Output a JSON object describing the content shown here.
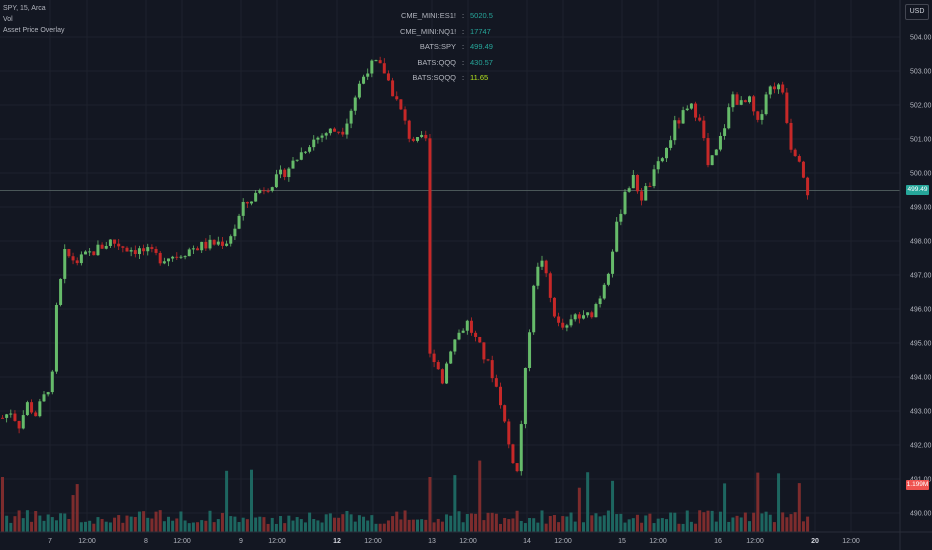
{
  "header": {
    "symbol_line": "SPY, 15, Arca",
    "indicator_vol": "Vol",
    "indicator_overlay": "Asset Price Overlay"
  },
  "overlay_table": [
    {
      "symbol": "CME_MINI:ES1!",
      "colon": ":",
      "value": "5020.5"
    },
    {
      "symbol": "CME_MINI:NQ1!",
      "colon": ":",
      "value": "17747"
    },
    {
      "symbol": "BATS:SPY",
      "colon": ":",
      "value": "499.49"
    },
    {
      "symbol": "BATS:QQQ",
      "colon": ":",
      "value": "430.57"
    },
    {
      "symbol": "BATS:SQQQ",
      "colon": ":",
      "value": "11.65"
    }
  ],
  "currency_button": "USD",
  "last_price_label": "499.49",
  "volume_label": "1.199M",
  "colors": {
    "background": "#131722",
    "up": "#26a69a",
    "down": "#ef5350",
    "up_candle": "#66bb6a",
    "down_candle": "#c62828",
    "grid": "#1e222d",
    "axis_text": "#b2b5be",
    "price_line": "#5d6d6a"
  },
  "chart_data": {
    "type": "candlestick",
    "title": "SPY, 15, Arca",
    "y_axis": {
      "ticks": [
        490,
        491,
        492,
        493,
        494,
        495,
        496,
        497,
        498,
        499,
        500,
        501,
        502,
        503,
        504
      ],
      "tick_labels": [
        "490.00",
        "491.00",
        "492.00",
        "493.00",
        "494.00",
        "495.00",
        "496.00",
        "497.00",
        "498.00",
        "499.00",
        "500.00",
        "501.00",
        "502.00",
        "503.00",
        "504.00"
      ],
      "range": [
        489.5,
        504.4
      ]
    },
    "x_axis": {
      "tick_labels": [
        "7",
        "12:00",
        "8",
        "12:00",
        "9",
        "12:00",
        "12",
        "12:00",
        "13",
        "12:00",
        "14",
        "12:00",
        "15",
        "12:00",
        "16",
        "12:00",
        "20",
        "12:00"
      ],
      "bold_labels": [
        "12",
        "20"
      ]
    },
    "last_price": 499.49,
    "series": [
      {
        "name": "price",
        "close_points": [
          {
            "x": 0,
            "y": 492.8
          },
          {
            "x": 2,
            "y": 493.0
          },
          {
            "x": 4,
            "y": 492.6
          },
          {
            "x": 6,
            "y": 493.2
          },
          {
            "x": 8,
            "y": 492.9
          },
          {
            "x": 10,
            "y": 493.4
          },
          {
            "x": 12,
            "y": 494.0
          },
          {
            "x": 13,
            "y": 496.0
          },
          {
            "x": 15,
            "y": 497.6
          },
          {
            "x": 18,
            "y": 497.4
          },
          {
            "x": 22,
            "y": 497.7
          },
          {
            "x": 26,
            "y": 498.0
          },
          {
            "x": 30,
            "y": 497.8
          },
          {
            "x": 34,
            "y": 497.7
          },
          {
            "x": 38,
            "y": 497.5
          },
          {
            "x": 42,
            "y": 497.6
          },
          {
            "x": 46,
            "y": 497.8
          },
          {
            "x": 50,
            "y": 497.9
          },
          {
            "x": 54,
            "y": 498.0
          },
          {
            "x": 56,
            "y": 498.4
          },
          {
            "x": 58,
            "y": 499.0
          },
          {
            "x": 62,
            "y": 499.5
          },
          {
            "x": 66,
            "y": 499.8
          },
          {
            "x": 70,
            "y": 500.3
          },
          {
            "x": 74,
            "y": 500.9
          },
          {
            "x": 78,
            "y": 501.2
          },
          {
            "x": 82,
            "y": 501.3
          },
          {
            "x": 84,
            "y": 501.9
          },
          {
            "x": 86,
            "y": 502.6
          },
          {
            "x": 88,
            "y": 503.1
          },
          {
            "x": 90,
            "y": 503.2
          },
          {
            "x": 92,
            "y": 503.0
          },
          {
            "x": 94,
            "y": 502.4
          },
          {
            "x": 96,
            "y": 501.8
          },
          {
            "x": 98,
            "y": 501.1
          },
          {
            "x": 100,
            "y": 500.9
          },
          {
            "x": 102,
            "y": 501.0
          },
          {
            "x": 104,
            "y": 494.6
          },
          {
            "x": 106,
            "y": 493.9
          },
          {
            "x": 108,
            "y": 494.9
          },
          {
            "x": 110,
            "y": 495.3
          },
          {
            "x": 112,
            "y": 495.6
          },
          {
            "x": 114,
            "y": 495.1
          },
          {
            "x": 116,
            "y": 494.6
          },
          {
            "x": 118,
            "y": 494.1
          },
          {
            "x": 120,
            "y": 493.3
          },
          {
            "x": 122,
            "y": 492.0
          },
          {
            "x": 124,
            "y": 491.2
          },
          {
            "x": 126,
            "y": 494.1
          },
          {
            "x": 128,
            "y": 496.8
          },
          {
            "x": 130,
            "y": 497.5
          },
          {
            "x": 132,
            "y": 496.3
          },
          {
            "x": 134,
            "y": 495.5
          },
          {
            "x": 136,
            "y": 495.4
          },
          {
            "x": 138,
            "y": 495.8
          },
          {
            "x": 140,
            "y": 495.7
          },
          {
            "x": 142,
            "y": 495.9
          },
          {
            "x": 144,
            "y": 496.4
          },
          {
            "x": 146,
            "y": 497.2
          },
          {
            "x": 148,
            "y": 498.4
          },
          {
            "x": 150,
            "y": 499.5
          },
          {
            "x": 152,
            "y": 499.8
          },
          {
            "x": 154,
            "y": 499.3
          },
          {
            "x": 156,
            "y": 499.7
          },
          {
            "x": 158,
            "y": 500.2
          },
          {
            "x": 160,
            "y": 500.7
          },
          {
            "x": 162,
            "y": 501.4
          },
          {
            "x": 164,
            "y": 501.7
          },
          {
            "x": 166,
            "y": 501.9
          },
          {
            "x": 168,
            "y": 501.7
          },
          {
            "x": 170,
            "y": 500.2
          },
          {
            "x": 172,
            "y": 500.6
          },
          {
            "x": 174,
            "y": 501.4
          },
          {
            "x": 176,
            "y": 502.3
          },
          {
            "x": 178,
            "y": 502.0
          },
          {
            "x": 180,
            "y": 502.1
          },
          {
            "x": 182,
            "y": 501.4
          },
          {
            "x": 184,
            "y": 502.4
          },
          {
            "x": 186,
            "y": 502.6
          },
          {
            "x": 188,
            "y": 502.4
          },
          {
            "x": 190,
            "y": 500.8
          },
          {
            "x": 192,
            "y": 500.5
          },
          {
            "x": 194,
            "y": 499.5
          }
        ]
      }
    ]
  }
}
